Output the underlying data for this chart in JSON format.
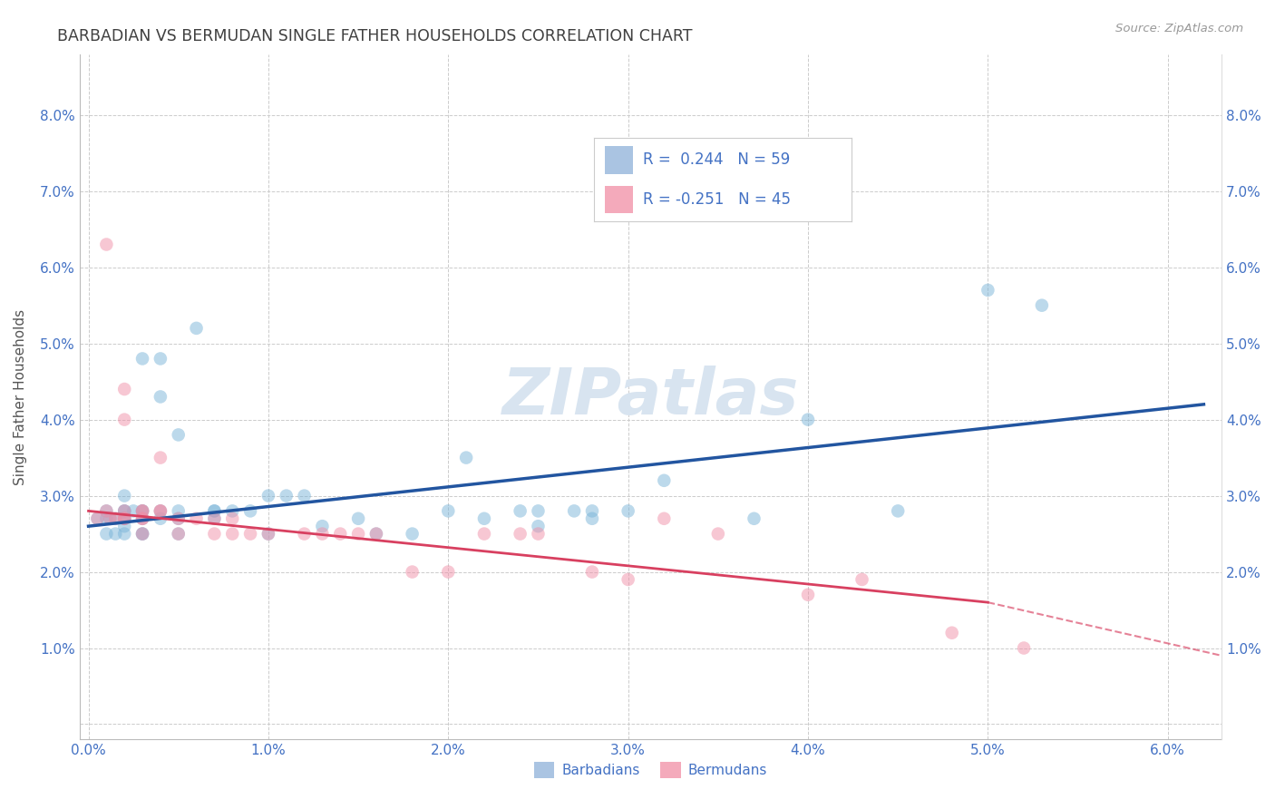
{
  "title": "BARBADIAN VS BERMUDAN SINGLE FATHER HOUSEHOLDS CORRELATION CHART",
  "source": "Source: ZipAtlas.com",
  "ylabel": "Single Father Households",
  "xlim": [
    -0.0005,
    0.063
  ],
  "ylim": [
    -0.002,
    0.088
  ],
  "x_ticks": [
    0.0,
    0.01,
    0.02,
    0.03,
    0.04,
    0.05,
    0.06
  ],
  "x_tick_labels": [
    "0.0%",
    "1.0%",
    "2.0%",
    "3.0%",
    "4.0%",
    "5.0%",
    "6.0%"
  ],
  "y_ticks": [
    0.0,
    0.01,
    0.02,
    0.03,
    0.04,
    0.05,
    0.06,
    0.07,
    0.08
  ],
  "y_tick_labels": [
    "",
    "1.0%",
    "2.0%",
    "3.0%",
    "4.0%",
    "5.0%",
    "6.0%",
    "7.0%",
    "8.0%"
  ],
  "legend1_label": "R =  0.244   N = 59",
  "legend2_label": "R = -0.251   N = 45",
  "legend1_color": "#aac4e2",
  "legend2_color": "#f4aabb",
  "scatter1_color": "#7ab4d8",
  "scatter2_color": "#f090a8",
  "line1_color": "#2255a0",
  "line2_color": "#d84060",
  "watermark": "ZIPatlas",
  "watermark_color": "#d8e4f0",
  "bg_color": "#ffffff",
  "grid_color": "#cccccc",
  "title_color": "#404040",
  "axis_color": "#4472c4",
  "barbadians_x": [
    0.0005,
    0.001,
    0.001,
    0.001,
    0.0012,
    0.0015,
    0.0015,
    0.002,
    0.002,
    0.002,
    0.002,
    0.002,
    0.002,
    0.002,
    0.0025,
    0.003,
    0.003,
    0.003,
    0.003,
    0.003,
    0.003,
    0.004,
    0.004,
    0.004,
    0.004,
    0.005,
    0.005,
    0.005,
    0.005,
    0.006,
    0.007,
    0.007,
    0.007,
    0.008,
    0.009,
    0.01,
    0.01,
    0.011,
    0.012,
    0.013,
    0.015,
    0.016,
    0.018,
    0.02,
    0.021,
    0.022,
    0.024,
    0.025,
    0.025,
    0.027,
    0.028,
    0.028,
    0.03,
    0.032,
    0.037,
    0.04,
    0.045,
    0.05,
    0.053
  ],
  "barbadians_y": [
    0.027,
    0.027,
    0.028,
    0.025,
    0.027,
    0.025,
    0.027,
    0.028,
    0.027,
    0.026,
    0.028,
    0.025,
    0.027,
    0.03,
    0.028,
    0.027,
    0.028,
    0.025,
    0.028,
    0.025,
    0.048,
    0.027,
    0.043,
    0.028,
    0.048,
    0.027,
    0.025,
    0.028,
    0.038,
    0.052,
    0.027,
    0.028,
    0.028,
    0.028,
    0.028,
    0.03,
    0.025,
    0.03,
    0.03,
    0.026,
    0.027,
    0.025,
    0.025,
    0.028,
    0.035,
    0.027,
    0.028,
    0.026,
    0.028,
    0.028,
    0.028,
    0.027,
    0.028,
    0.032,
    0.027,
    0.04,
    0.028,
    0.057,
    0.055
  ],
  "bermudans_x": [
    0.0005,
    0.001,
    0.001,
    0.0012,
    0.0015,
    0.002,
    0.002,
    0.002,
    0.002,
    0.002,
    0.003,
    0.003,
    0.003,
    0.003,
    0.003,
    0.004,
    0.004,
    0.004,
    0.005,
    0.005,
    0.006,
    0.007,
    0.007,
    0.008,
    0.008,
    0.009,
    0.01,
    0.012,
    0.013,
    0.014,
    0.015,
    0.016,
    0.018,
    0.02,
    0.022,
    0.024,
    0.025,
    0.028,
    0.03,
    0.032,
    0.035,
    0.04,
    0.043,
    0.048,
    0.052
  ],
  "bermudans_y": [
    0.027,
    0.063,
    0.028,
    0.027,
    0.027,
    0.028,
    0.027,
    0.027,
    0.04,
    0.044,
    0.028,
    0.027,
    0.025,
    0.027,
    0.028,
    0.028,
    0.035,
    0.028,
    0.025,
    0.027,
    0.027,
    0.027,
    0.025,
    0.027,
    0.025,
    0.025,
    0.025,
    0.025,
    0.025,
    0.025,
    0.025,
    0.025,
    0.02,
    0.02,
    0.025,
    0.025,
    0.025,
    0.02,
    0.019,
    0.027,
    0.025,
    0.017,
    0.019,
    0.012,
    0.01
  ],
  "line1_x0": 0.0,
  "line1_x1": 0.062,
  "line1_y0": 0.026,
  "line1_y1": 0.042,
  "line2_x0": 0.0,
  "line2_x1": 0.05,
  "line2_y0": 0.028,
  "line2_y1": 0.016,
  "line2_dash_x0": 0.05,
  "line2_dash_x1": 0.063,
  "line2_dash_y0": 0.016,
  "line2_dash_y1": 0.009
}
